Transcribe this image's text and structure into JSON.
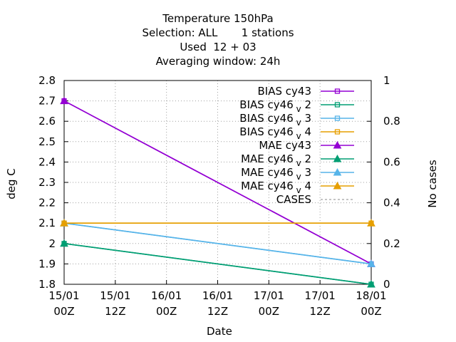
{
  "title_lines": [
    "Temperature 150hPa",
    "Selection: ALL       1 stations",
    "Used  12 + 03",
    "Averaging window: 24h"
  ],
  "chart_data": {
    "type": "line",
    "xlabel": "Date",
    "ylabel": "deg C",
    "y2label": "No cases",
    "x_ticks": [
      "15/01\n00Z",
      "15/01\n12Z",
      "16/01\n00Z",
      "16/01\n12Z",
      "17/01\n00Z",
      "17/01\n12Z",
      "18/01\n00Z"
    ],
    "xlim": [
      0,
      72
    ],
    "ylim": [
      1.8,
      2.8
    ],
    "y_ticks": [
      "1.8",
      "1.9",
      "2",
      "2.1",
      "2.2",
      "2.3",
      "2.4",
      "2.5",
      "2.6",
      "2.7",
      "2.8"
    ],
    "y2lim": [
      0,
      1
    ],
    "y2_ticks": [
      "0",
      "0.2",
      "0.4",
      "0.6",
      "0.8",
      "1"
    ],
    "grid": true,
    "legend_position": "top-right",
    "series": [
      {
        "name": "BIAS cy43",
        "sub": "",
        "marker": "square",
        "color": "#9400d3",
        "x": [
          0,
          72
        ],
        "y": [
          2.7,
          1.9
        ]
      },
      {
        "name": "BIAS cy46",
        "sub": "v 2",
        "marker": "square",
        "color": "#009e73",
        "x": [
          0,
          72
        ],
        "y": [
          2.0,
          1.8
        ]
      },
      {
        "name": "BIAS cy46",
        "sub": "v 3",
        "marker": "square",
        "color": "#56b4e9",
        "x": [
          0,
          72
        ],
        "y": [
          2.1,
          1.9
        ]
      },
      {
        "name": "BIAS cy46",
        "sub": "v 4",
        "marker": "square",
        "color": "#e69f00",
        "x": [
          0,
          72
        ],
        "y": [
          2.1,
          2.1
        ]
      },
      {
        "name": "MAE cy43",
        "sub": "",
        "marker": "triangle",
        "color": "#9400d3",
        "x": [
          0,
          72
        ],
        "y": [
          2.7,
          1.9
        ]
      },
      {
        "name": "MAE cy46",
        "sub": "v 2",
        "marker": "triangle",
        "color": "#009e73",
        "x": [
          0,
          72
        ],
        "y": [
          2.0,
          1.8
        ]
      },
      {
        "name": "MAE cy46",
        "sub": "v 3",
        "marker": "triangle",
        "color": "#56b4e9",
        "x": [
          0,
          72
        ],
        "y": [
          2.1,
          1.9
        ]
      },
      {
        "name": "MAE cy46",
        "sub": "v 4",
        "marker": "triangle",
        "color": "#e69f00",
        "x": [
          0,
          72
        ],
        "y": [
          2.1,
          2.1
        ]
      },
      {
        "name": "CASES",
        "sub": "",
        "marker": "none",
        "color": "#a0a0a0",
        "dashed": true,
        "x": [],
        "y": []
      }
    ]
  }
}
